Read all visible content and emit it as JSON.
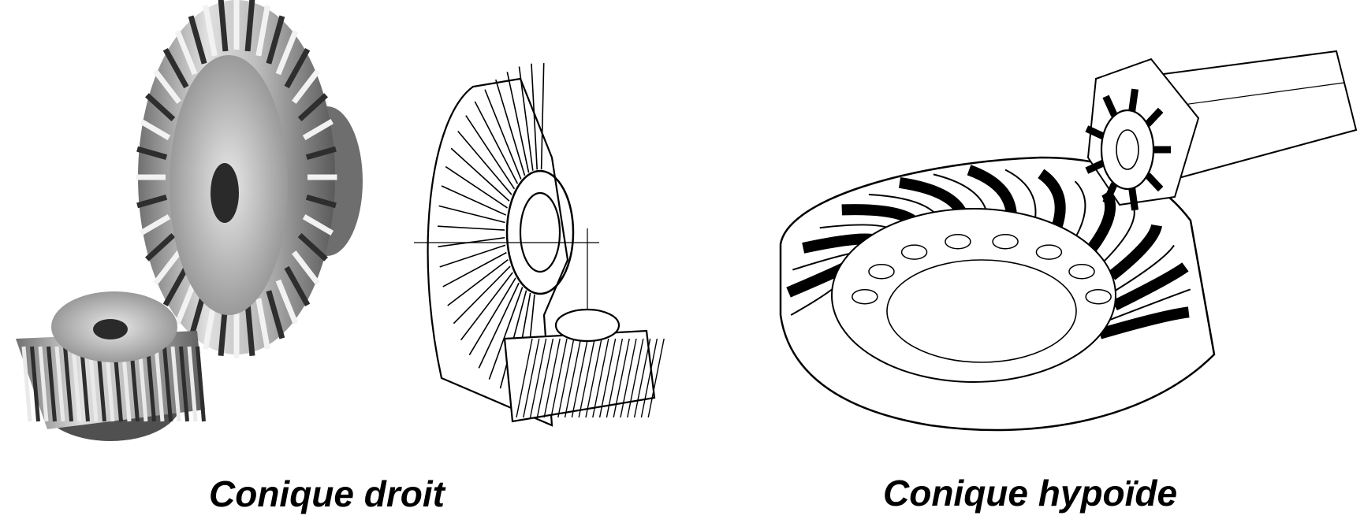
{
  "figures": [
    {
      "caption": "Conique droit",
      "illustrations": [
        "photo-straight-bevel-gears",
        "drawing-straight-bevel-gears"
      ]
    },
    {
      "caption": "Conique hypoïde",
      "illustrations": [
        "drawing-hypoid-gears"
      ]
    }
  ],
  "colors": {
    "ink": "#000000",
    "metal_light": "#d8d8d8",
    "metal_mid": "#9a9a9a",
    "metal_dark": "#3a3a3a",
    "background": "#ffffff"
  }
}
